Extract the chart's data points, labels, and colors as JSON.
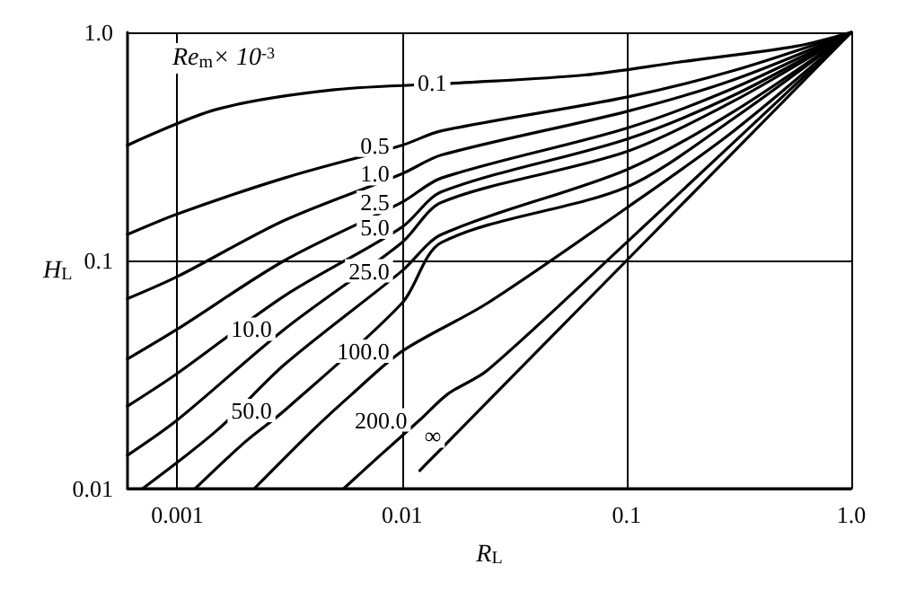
{
  "chart_data": {
    "type": "line",
    "xlabel": "R$_{L}$",
    "ylabel": "H$_{L}$",
    "legend_title": "Re$_{m}$× 10$^{-3}$",
    "log": "xy",
    "grid": true,
    "marker": "none",
    "line_style": "solid",
    "legend": false,
    "xlim": [
      0.0006,
      1.0
    ],
    "ylim": [
      0.01,
      1.0
    ],
    "xticks": [
      0.001,
      0.01,
      0.1,
      {
        "value": 1,
        "label": "1.0"
      }
    ],
    "yticks": [
      0.01,
      0.1,
      {
        "value": 1,
        "label": "1.0"
      }
    ],
    "series": [
      {
        "name": "0.1",
        "color": "#000000",
        "x": [
          0.0006,
          0.0015,
          0.005,
          0.018,
          0.065,
          0.17,
          0.57,
          1
        ],
        "values": [
          0.32,
          0.46,
          0.56,
          0.6,
          0.65,
          0.74,
          0.87,
          1
        ]
      },
      {
        "name": "0.5",
        "color": "#000000",
        "x": [
          0.0006,
          0.001,
          0.003,
          0.01,
          0.015,
          0.1,
          0.3,
          1
        ],
        "values": [
          0.13,
          0.16,
          0.23,
          0.32,
          0.37,
          0.52,
          0.68,
          1
        ]
      },
      {
        "name": "1.0",
        "color": "#000000",
        "x": [
          0.0006,
          0.001,
          0.003,
          0.01,
          0.015,
          0.1,
          0.3,
          1
        ],
        "values": [
          0.068,
          0.085,
          0.15,
          0.24,
          0.29,
          0.45,
          0.62,
          1
        ]
      },
      {
        "name": "2.5",
        "color": "#000000",
        "x": [
          0.0006,
          0.001,
          0.003,
          0.01,
          0.015,
          0.1,
          0.3,
          1
        ],
        "values": [
          0.037,
          0.05,
          0.1,
          0.18,
          0.23,
          0.38,
          0.57,
          1
        ]
      },
      {
        "name": "5.0",
        "color": "#000000",
        "x": [
          0.0006,
          0.001,
          0.003,
          0.01,
          0.015,
          0.1,
          0.3,
          1
        ],
        "values": [
          0.023,
          0.032,
          0.07,
          0.14,
          0.2,
          0.34,
          0.53,
          1
        ]
      },
      {
        "name": "10.0",
        "color": "#000000",
        "x": [
          0.0006,
          0.001,
          0.003,
          0.01,
          0.015,
          0.1,
          0.3,
          1
        ],
        "values": [
          0.014,
          0.02,
          0.05,
          0.12,
          0.18,
          0.3,
          0.5,
          1
        ]
      },
      {
        "name": "25.0",
        "color": "#000000",
        "x": [
          0.0007,
          0.0015,
          0.003,
          0.01,
          0.015,
          0.1,
          0.3,
          1
        ],
        "values": [
          0.01,
          0.018,
          0.035,
          0.09,
          0.13,
          0.25,
          0.45,
          1
        ]
      },
      {
        "name": "50.0",
        "color": "#000000",
        "x": [
          0.0012,
          0.002,
          0.003,
          0.01,
          0.015,
          0.1,
          0.3,
          1
        ],
        "values": [
          0.01,
          0.016,
          0.022,
          0.065,
          0.12,
          0.21,
          0.42,
          1
        ]
      },
      {
        "name": "100.0",
        "color": "#000000",
        "x": [
          0.0022,
          0.004,
          0.006,
          0.01,
          0.024,
          0.1,
          0.3,
          1
        ],
        "values": [
          0.01,
          0.018,
          0.026,
          0.04,
          0.065,
          0.17,
          0.37,
          1
        ]
      },
      {
        "name": "200.0",
        "color": "#000000",
        "x": [
          0.0055,
          0.008,
          0.012,
          0.016,
          0.024,
          0.1,
          0.3,
          1
        ],
        "values": [
          0.01,
          0.014,
          0.02,
          0.026,
          0.033,
          0.12,
          0.33,
          1
        ]
      },
      {
        "name": "∞",
        "color": "#000000",
        "x": [
          0.012,
          0.014,
          0.016,
          0.017,
          0.1,
          1
        ],
        "values": [
          0.012,
          0.014,
          0.016,
          0.017,
          0.1,
          1
        ]
      }
    ]
  }
}
